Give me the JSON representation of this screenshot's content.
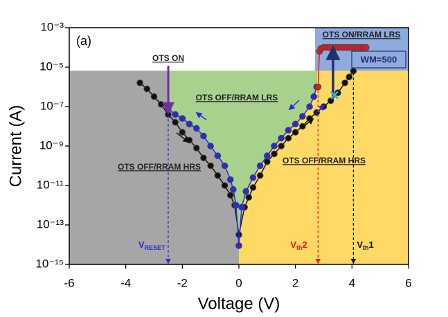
{
  "chart_data": {
    "type": "scatter",
    "panel_label": "(a)",
    "x_label": "Voltage (V)",
    "y_label": "Current (A)",
    "xlim": [
      -6,
      6
    ],
    "xticks": [
      -6,
      -4,
      -2,
      0,
      2,
      4,
      6
    ],
    "ylim": [
      1e-15,
      0.001
    ],
    "y_scale": "log",
    "yticks": [
      {
        "value": 1e-15,
        "label": "10⁻¹⁵"
      },
      {
        "value": 1e-13,
        "label": "10⁻¹³"
      },
      {
        "value": 1e-11,
        "label": "10⁻¹¹"
      },
      {
        "value": 1e-09,
        "label": "10⁻⁹"
      },
      {
        "value": 1e-07,
        "label": "10⁻⁷"
      },
      {
        "value": 1e-05,
        "label": "10⁻⁵"
      },
      {
        "value": 0.001,
        "label": "10⁻³"
      }
    ],
    "series": [
      {
        "color": "#111111",
        "x": [
          -3.5,
          -3.25,
          -3.0,
          -2.75,
          -2.5,
          -2.25,
          -2.0,
          -1.75,
          -1.5,
          -1.25,
          -1.0,
          -0.75,
          -0.5,
          -0.3,
          -0.15,
          0,
          0.2,
          0.35,
          0.5,
          0.75,
          1.0,
          1.25,
          1.5,
          1.75,
          2.0,
          2.25,
          2.5,
          2.75,
          3.0,
          3.25,
          3.5,
          3.75,
          3.9,
          4.05
        ],
        "values": [
          1.6e-06,
          7.9e-07,
          3.2e-07,
          1.3e-07,
          4e-08,
          1.6e-08,
          5e-09,
          2e-09,
          7.9e-10,
          2.5e-10,
          1e-10,
          3.2e-11,
          1e-11,
          3.2e-12,
          1e-12,
          3.2e-14,
          7.9e-13,
          2.5e-12,
          7.9e-12,
          3.2e-11,
          1.6e-10,
          4e-10,
          1e-09,
          2.5e-09,
          5e-09,
          1e-08,
          2.5e-08,
          5e-08,
          1e-07,
          2e-07,
          5e-07,
          1.6e-06,
          3.2e-06,
          6.3e-06
        ]
      },
      {
        "color": "#2a2ad8",
        "x": [
          -2.5,
          -2.25,
          -2.0,
          -1.75,
          -1.5,
          -1.25,
          -1.0,
          -0.75,
          -0.5,
          -0.3,
          -0.2,
          -0.1,
          0,
          0.1,
          0.25,
          0.5,
          0.75,
          1.0,
          1.25,
          1.5,
          1.75,
          2.0,
          2.25,
          2.5,
          2.65,
          2.75
        ],
        "values": [
          7.9e-08,
          4e-08,
          2.5e-08,
          1.3e-08,
          7.9e-09,
          3.2e-09,
          1e-09,
          3.2e-10,
          1e-10,
          2e-11,
          6.3e-12,
          1e-12,
          8.9e-15,
          7.9e-13,
          5e-12,
          2.5e-11,
          1e-10,
          3.2e-10,
          1e-09,
          2.5e-09,
          6.3e-09,
          1.3e-08,
          3.2e-08,
          1e-07,
          3.2e-07,
          1e-06
        ]
      },
      {
        "color": "#e8191c",
        "x": [
          2.8,
          2.85,
          2.9,
          3.0,
          3.1,
          3.2,
          3.3,
          3.4,
          3.5,
          3.6,
          3.7,
          3.8,
          3.9,
          4.0,
          4.1,
          4.2,
          4.3,
          4.4,
          4.5
        ],
        "values": [
          1e-06,
          6.3e-05,
          8.9e-05,
          0.0001,
          0.0001,
          0.0001,
          0.0001,
          0.0001,
          0.0001,
          0.0001,
          0.0001,
          0.0001,
          0.0001,
          0.0001,
          0.0001,
          0.0001,
          0.0001,
          0.0001,
          0.0001
        ]
      }
    ],
    "region_labels": [
      "OTS ON",
      "OTS OFF/RRAM LRS",
      "OTS OFF/RRAM HRS",
      "OTS OFF/RRAM HRS",
      "OTS ON/RRAM LRS",
      "WM=500"
    ],
    "voltage_markers": [
      {
        "label": "V",
        "subscript": "RESET",
        "x": -2.5,
        "color": "#2a2ad8"
      },
      {
        "label": "V",
        "subscript": "th",
        "suffix": "2",
        "x": 2.8,
        "color": "#e8191c"
      },
      {
        "label": "V",
        "subscript": "th",
        "suffix": "1",
        "x": 4.05,
        "color": "#111111"
      }
    ]
  }
}
